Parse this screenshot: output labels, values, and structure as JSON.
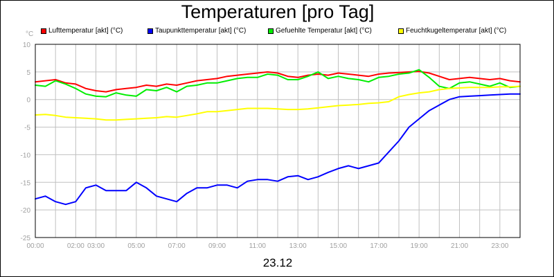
{
  "title": "Temperaturen [pro Tag]",
  "date_label": "23.12",
  "chart_data": {
    "type": "line",
    "title": "Temperaturen [pro Tag]",
    "xlabel": "23.12",
    "ylabel": "",
    "y_unit": "°C",
    "xlim": [
      0,
      24
    ],
    "ylim": [
      -25,
      10
    ],
    "grid": true,
    "legend_position": "top",
    "y_ticks": [
      "10",
      "5",
      "0",
      "-5",
      "-10",
      "-15",
      "-20",
      "-25"
    ],
    "x_ticks": [
      {
        "hour": 0,
        "label": "00:00"
      },
      {
        "hour": 2,
        "label": "02:00"
      },
      {
        "hour": 3,
        "label": "03:00"
      },
      {
        "hour": 5,
        "label": "05:00"
      },
      {
        "hour": 7,
        "label": "07:00"
      },
      {
        "hour": 9,
        "label": "09:00"
      },
      {
        "hour": 11,
        "label": "11:00"
      },
      {
        "hour": 13,
        "label": "13:00"
      },
      {
        "hour": 15,
        "label": "15:00"
      },
      {
        "hour": 17,
        "label": "17:00"
      },
      {
        "hour": 19,
        "label": "19:00"
      },
      {
        "hour": 21,
        "label": "21:00"
      },
      {
        "hour": 23,
        "label": "23:00"
      }
    ],
    "series": [
      {
        "name": "Lufttemperatur [akt] (°C)",
        "color": "#ff0000",
        "x": [
          0,
          0.5,
          1,
          1.5,
          2,
          2.5,
          3,
          3.5,
          4,
          4.5,
          5,
          5.5,
          6,
          6.5,
          7,
          7.5,
          8,
          8.5,
          9,
          9.5,
          10,
          10.5,
          11,
          11.5,
          12,
          12.5,
          13,
          13.5,
          14,
          14.5,
          15,
          15.5,
          16,
          16.5,
          17,
          17.5,
          18,
          18.5,
          19,
          19.5,
          20,
          20.5,
          21,
          21.5,
          22,
          22.5,
          23,
          23.5,
          24
        ],
        "y": [
          3.2,
          3.4,
          3.6,
          3.0,
          2.8,
          2.0,
          1.6,
          1.4,
          1.8,
          2.0,
          2.2,
          2.6,
          2.4,
          2.8,
          2.6,
          3.0,
          3.4,
          3.6,
          3.8,
          4.2,
          4.4,
          4.6,
          4.8,
          5.0,
          4.8,
          4.2,
          4.0,
          4.4,
          4.6,
          4.4,
          4.8,
          4.6,
          4.4,
          4.2,
          4.6,
          4.8,
          4.9,
          5.0,
          5.1,
          4.8,
          4.2,
          3.6,
          3.8,
          4.0,
          3.8,
          3.6,
          3.8,
          3.4,
          3.2
        ]
      },
      {
        "name": "Taupunkttemperatur [akt] (°C)",
        "color": "#0000ff",
        "x": [
          0,
          0.5,
          1,
          1.5,
          2,
          2.5,
          3,
          3.5,
          4,
          4.5,
          5,
          5.5,
          6,
          6.5,
          7,
          7.5,
          8,
          8.5,
          9,
          9.5,
          10,
          10.5,
          11,
          11.5,
          12,
          12.5,
          13,
          13.5,
          14,
          14.5,
          15,
          15.5,
          16,
          16.5,
          17,
          17.5,
          18,
          18.5,
          19,
          19.5,
          20,
          20.5,
          21,
          21.5,
          22,
          22.5,
          23,
          23.5,
          24
        ],
        "y": [
          -18.0,
          -17.5,
          -18.5,
          -19.0,
          -18.5,
          -16.0,
          -15.5,
          -16.5,
          -16.5,
          -16.5,
          -15.0,
          -16.0,
          -17.5,
          -18.0,
          -18.5,
          -17.0,
          -16.0,
          -16.0,
          -15.5,
          -15.5,
          -16.0,
          -14.8,
          -14.5,
          -14.5,
          -14.8,
          -14.0,
          -13.8,
          -14.5,
          -14.0,
          -13.2,
          -12.5,
          -12.0,
          -12.5,
          -12.0,
          -11.5,
          -9.5,
          -7.5,
          -5.0,
          -3.5,
          -2.0,
          -1.0,
          0.0,
          0.5,
          0.6,
          0.7,
          0.8,
          0.9,
          1.0,
          1.0
        ]
      },
      {
        "name": "Gefuehlte Temperatur [akt] (°C)",
        "color": "#00ee00",
        "x": [
          0,
          0.5,
          1,
          1.5,
          2,
          2.5,
          3,
          3.5,
          4,
          4.5,
          5,
          5.5,
          6,
          6.5,
          7,
          7.5,
          8,
          8.5,
          9,
          9.5,
          10,
          10.5,
          11,
          11.5,
          12,
          12.5,
          13,
          13.5,
          14,
          14.5,
          15,
          15.5,
          16,
          16.5,
          17,
          17.5,
          18,
          18.5,
          19,
          19.5,
          20,
          20.5,
          21,
          21.5,
          22,
          22.5,
          23,
          23.5,
          24
        ],
        "y": [
          2.6,
          2.4,
          3.4,
          2.8,
          2.0,
          1.0,
          0.6,
          0.5,
          1.2,
          0.8,
          0.6,
          1.8,
          1.6,
          2.2,
          1.4,
          2.4,
          2.6,
          3.0,
          3.0,
          3.4,
          3.8,
          4.0,
          4.0,
          4.6,
          4.4,
          3.6,
          3.6,
          4.2,
          5.0,
          3.8,
          4.2,
          3.8,
          3.6,
          3.2,
          4.0,
          4.2,
          4.6,
          4.8,
          5.4,
          4.0,
          2.4,
          2.0,
          3.0,
          3.2,
          2.8,
          2.4,
          3.0,
          2.2,
          2.4
        ]
      },
      {
        "name": "Feuchtkugeltemperatur [akt] (°C)",
        "color": "#ffff00",
        "x": [
          0,
          0.5,
          1,
          1.5,
          2,
          2.5,
          3,
          3.5,
          4,
          4.5,
          5,
          5.5,
          6,
          6.5,
          7,
          7.5,
          8,
          8.5,
          9,
          9.5,
          10,
          10.5,
          11,
          11.5,
          12,
          12.5,
          13,
          13.5,
          14,
          14.5,
          15,
          15.5,
          16,
          16.5,
          17,
          17.5,
          18,
          18.5,
          19,
          19.5,
          20,
          20.5,
          21,
          21.5,
          22,
          22.5,
          23,
          23.5,
          24
        ],
        "y": [
          -2.8,
          -2.7,
          -2.9,
          -3.2,
          -3.3,
          -3.4,
          -3.5,
          -3.7,
          -3.7,
          -3.6,
          -3.5,
          -3.4,
          -3.3,
          -3.1,
          -3.2,
          -2.9,
          -2.6,
          -2.2,
          -2.2,
          -2.0,
          -1.8,
          -1.6,
          -1.6,
          -1.6,
          -1.7,
          -1.8,
          -1.8,
          -1.7,
          -1.5,
          -1.3,
          -1.1,
          -1.0,
          -0.9,
          -0.7,
          -0.6,
          -0.4,
          0.5,
          0.9,
          1.2,
          1.4,
          1.8,
          2.0,
          2.1,
          2.2,
          2.2,
          2.2,
          2.3,
          2.3,
          2.4
        ]
      }
    ]
  }
}
